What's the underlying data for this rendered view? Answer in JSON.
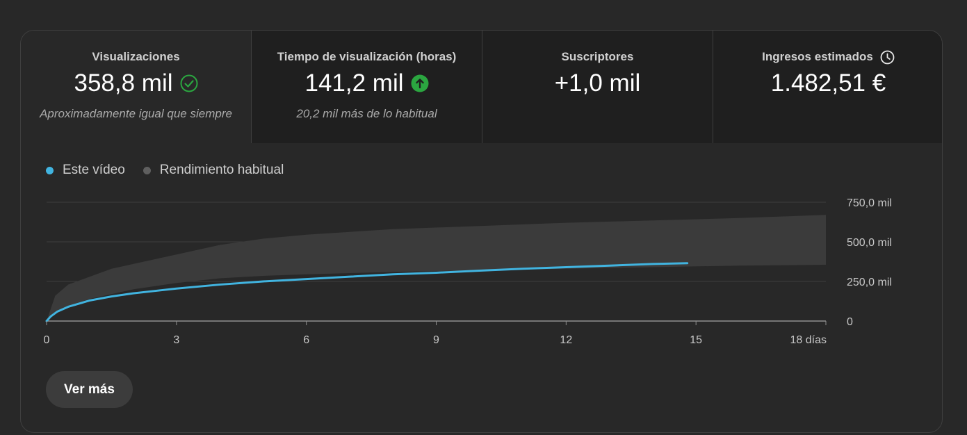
{
  "metrics": [
    {
      "title": "Visualizaciones",
      "value": "358,8 mil",
      "note": "Aproximadamente igual que siempre",
      "icon": "check-circle-icon"
    },
    {
      "title": "Tiempo de visualización (horas)",
      "value": "141,2 mil",
      "note": "20,2 mil más de lo habitual",
      "icon": "arrow-up-circle-icon"
    },
    {
      "title": "Suscriptores",
      "value": "+1,0 mil",
      "note": ""
    },
    {
      "title": "Ingresos estimados",
      "value": "1.482,51 €",
      "note": "",
      "icon": "clock-icon"
    }
  ],
  "colors": {
    "accent_line": "#41b4e0",
    "band": "#3b3b3b",
    "success_green": "#2ba640",
    "grid": "#3e3e3e",
    "axis": "#909090"
  },
  "legend": [
    {
      "label": "Este vídeo",
      "color": "#41b4e0"
    },
    {
      "label": "Rendimiento habitual",
      "color": "#5f5f5f"
    }
  ],
  "button": {
    "label": "Ver más"
  },
  "chart_data": {
    "type": "line",
    "x_ticks": [
      "0",
      "3",
      "6",
      "9",
      "12",
      "15",
      "18 días"
    ],
    "x_tick_values": [
      0,
      3,
      6,
      9,
      12,
      15,
      18
    ],
    "y_ticks": [
      "0",
      "250,0 mil",
      "500,0 mil",
      "750,0 mil"
    ],
    "y_tick_values": [
      0,
      250000,
      500000,
      750000
    ],
    "xlim": [
      0,
      18
    ],
    "ylim": [
      0,
      750000
    ],
    "grid": true,
    "series": [
      {
        "name": "Este vídeo",
        "x": [
          0,
          0.1,
          0.25,
          0.5,
          0.75,
          1,
          1.5,
          2,
          2.5,
          3,
          4,
          5,
          6,
          7,
          8,
          9,
          10,
          11,
          12,
          13,
          14,
          14.8
        ],
        "y": [
          0,
          30000,
          60000,
          90000,
          110000,
          130000,
          155000,
          175000,
          190000,
          205000,
          230000,
          250000,
          265000,
          280000,
          295000,
          305000,
          318000,
          330000,
          340000,
          350000,
          360000,
          365000
        ]
      }
    ],
    "band": {
      "name": "Rendimiento habitual",
      "x": [
        0,
        0.2,
        0.5,
        1,
        1.5,
        2,
        3,
        4,
        5,
        6,
        8,
        10,
        12,
        14,
        16,
        18
      ],
      "lower": [
        0,
        50000,
        90000,
        140000,
        170000,
        200000,
        240000,
        270000,
        285000,
        295000,
        310000,
        320000,
        330000,
        340000,
        350000,
        355000
      ],
      "upper": [
        0,
        160000,
        230000,
        280000,
        330000,
        360000,
        420000,
        480000,
        520000,
        545000,
        580000,
        600000,
        620000,
        635000,
        650000,
        670000
      ]
    }
  }
}
